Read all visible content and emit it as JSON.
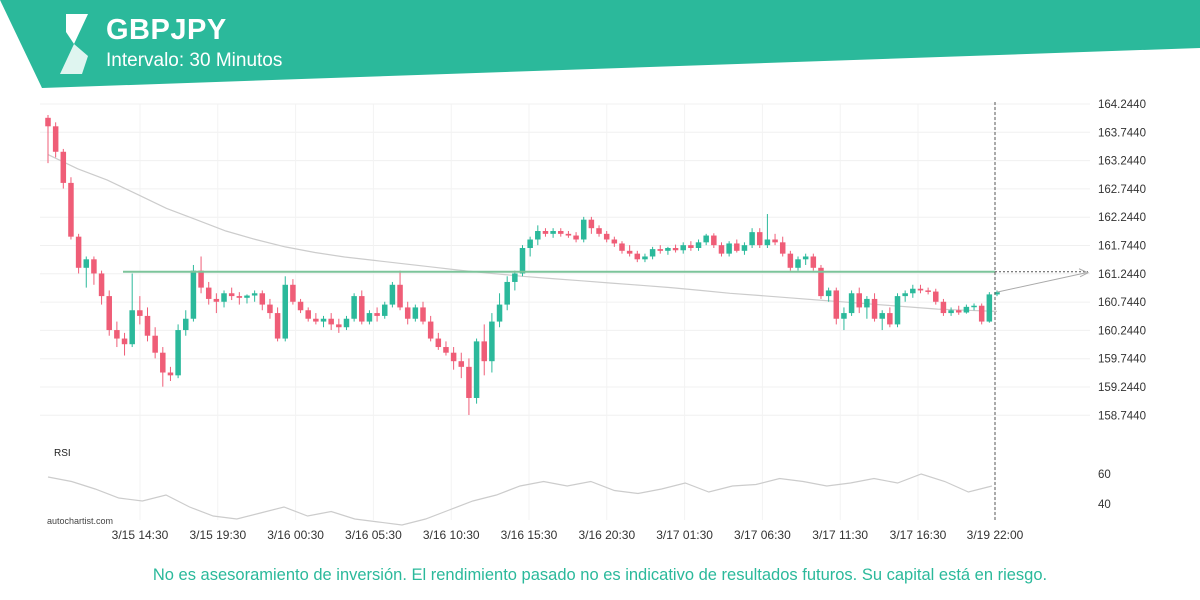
{
  "header": {
    "symbol": "GBPJPY",
    "interval": "Intervalo: 30 Minutos",
    "brand_color": "#2bb99b"
  },
  "watermark": "autochartist.com",
  "disclaimer": "No es asesoramiento de inversión. El rendimiento pasado no es indicativo de resultados futuros. Su capital está en riesgo.",
  "chart_data": [
    {
      "type": "candlestick",
      "title": "GBPJPY",
      "y_ticks": [
        "164.2440",
        "163.7440",
        "163.2440",
        "162.7440",
        "162.2440",
        "161.7440",
        "161.2440",
        "160.7440",
        "160.2440",
        "159.7440",
        "159.2440",
        "158.7440"
      ],
      "ylim": [
        158.5,
        164.3
      ],
      "x_ticks": [
        "3/15 14:30",
        "3/15 19:30",
        "3/16 00:30",
        "3/16 05:30",
        "3/16 10:30",
        "3/16 15:30",
        "3/16 20:30",
        "3/17 01:30",
        "3/17 06:30",
        "3/17 11:30",
        "3/17 16:30",
        "3/19 22:00"
      ],
      "level_line": 161.28,
      "colors": {
        "up": "#2bb99b",
        "down": "#ef5d77",
        "level": "#7cc49a",
        "ma": "#cccccc"
      },
      "ohlc": [
        [
          164.0,
          164.05,
          163.2,
          163.85
        ],
        [
          163.85,
          163.92,
          163.3,
          163.4
        ],
        [
          163.4,
          163.45,
          162.75,
          162.85
        ],
        [
          162.85,
          162.95,
          161.85,
          161.9
        ],
        [
          161.9,
          161.95,
          161.25,
          161.35
        ],
        [
          161.35,
          161.55,
          161.0,
          161.5
        ],
        [
          161.5,
          161.55,
          161.05,
          161.25
        ],
        [
          161.25,
          161.3,
          160.7,
          160.85
        ],
        [
          160.85,
          160.95,
          160.15,
          160.25
        ],
        [
          160.25,
          160.4,
          159.95,
          160.1
        ],
        [
          160.1,
          160.2,
          159.8,
          160.0
        ],
        [
          160.0,
          161.25,
          159.95,
          160.6
        ],
        [
          160.6,
          160.85,
          160.35,
          160.5
        ],
        [
          160.5,
          160.65,
          160.05,
          160.15
        ],
        [
          160.15,
          160.3,
          159.75,
          159.85
        ],
        [
          159.85,
          159.95,
          159.25,
          159.5
        ],
        [
          159.5,
          159.6,
          159.35,
          159.45
        ],
        [
          159.45,
          160.35,
          159.4,
          160.25
        ],
        [
          160.25,
          160.6,
          160.15,
          160.45
        ],
        [
          160.45,
          161.4,
          160.4,
          161.3
        ],
        [
          161.3,
          161.55,
          160.9,
          161.0
        ],
        [
          161.0,
          161.1,
          160.7,
          160.8
        ],
        [
          160.8,
          160.9,
          160.55,
          160.75
        ],
        [
          160.75,
          160.95,
          160.65,
          160.9
        ],
        [
          160.9,
          161.0,
          160.78,
          160.85
        ],
        [
          160.85,
          160.92,
          160.7,
          160.82
        ],
        [
          160.82,
          160.88,
          160.72,
          160.86
        ],
        [
          160.86,
          160.95,
          160.75,
          160.9
        ],
        [
          160.9,
          160.95,
          160.6,
          160.7
        ],
        [
          160.7,
          160.8,
          160.45,
          160.55
        ],
        [
          160.55,
          160.65,
          160.05,
          160.1
        ],
        [
          160.1,
          161.2,
          160.05,
          161.05
        ],
        [
          161.05,
          161.15,
          160.7,
          160.75
        ],
        [
          160.75,
          160.8,
          160.55,
          160.6
        ],
        [
          160.6,
          160.65,
          160.4,
          160.45
        ],
        [
          160.45,
          160.55,
          160.35,
          160.4
        ],
        [
          160.4,
          160.5,
          160.3,
          160.45
        ],
        [
          160.45,
          160.55,
          160.25,
          160.35
        ],
        [
          160.35,
          160.45,
          160.2,
          160.3
        ],
        [
          160.3,
          160.5,
          160.25,
          160.45
        ],
        [
          160.45,
          160.9,
          160.4,
          160.85
        ],
        [
          160.85,
          160.95,
          160.35,
          160.4
        ],
        [
          160.4,
          160.6,
          160.35,
          160.55
        ],
        [
          160.55,
          160.65,
          160.4,
          160.5
        ],
        [
          160.5,
          160.75,
          160.45,
          160.7
        ],
        [
          160.7,
          161.1,
          160.65,
          161.05
        ],
        [
          161.05,
          161.3,
          160.6,
          160.65
        ],
        [
          160.65,
          160.75,
          160.35,
          160.45
        ],
        [
          160.45,
          160.7,
          160.4,
          160.65
        ],
        [
          160.65,
          160.75,
          160.35,
          160.4
        ],
        [
          160.4,
          160.5,
          160.05,
          160.1
        ],
        [
          160.1,
          160.2,
          159.9,
          159.95
        ],
        [
          159.95,
          160.05,
          159.8,
          159.85
        ],
        [
          159.85,
          159.95,
          159.55,
          159.7
        ],
        [
          159.7,
          159.85,
          159.4,
          159.6
        ],
        [
          159.6,
          159.75,
          158.75,
          159.05
        ],
        [
          159.05,
          160.1,
          158.95,
          160.05
        ],
        [
          160.05,
          160.35,
          159.45,
          159.7
        ],
        [
          159.7,
          160.55,
          159.5,
          160.4
        ],
        [
          160.4,
          160.9,
          160.3,
          160.7
        ],
        [
          160.7,
          161.2,
          160.6,
          161.1
        ],
        [
          161.1,
          161.3,
          160.95,
          161.25
        ],
        [
          161.25,
          161.75,
          161.2,
          161.7
        ],
        [
          161.7,
          161.9,
          161.55,
          161.85
        ],
        [
          161.85,
          162.1,
          161.75,
          162.0
        ],
        [
          162.0,
          162.05,
          161.9,
          161.95
        ],
        [
          161.95,
          162.05,
          161.88,
          162.0
        ],
        [
          162.0,
          162.05,
          161.9,
          161.95
        ],
        [
          161.95,
          162.0,
          161.88,
          161.92
        ],
        [
          161.92,
          161.98,
          161.8,
          161.85
        ],
        [
          161.85,
          162.25,
          161.8,
          162.2
        ],
        [
          162.2,
          162.25,
          161.95,
          162.05
        ],
        [
          162.05,
          162.1,
          161.9,
          161.95
        ],
        [
          161.95,
          162.0,
          161.8,
          161.85
        ],
        [
          161.85,
          161.9,
          161.72,
          161.78
        ],
        [
          161.78,
          161.82,
          161.6,
          161.65
        ],
        [
          161.65,
          161.75,
          161.55,
          161.6
        ],
        [
          161.6,
          161.65,
          161.45,
          161.5
        ],
        [
          161.5,
          161.6,
          161.45,
          161.55
        ],
        [
          161.55,
          161.72,
          161.5,
          161.68
        ],
        [
          161.68,
          161.75,
          161.6,
          161.65
        ],
        [
          161.65,
          161.72,
          161.58,
          161.7
        ],
        [
          161.7,
          161.76,
          161.62,
          161.66
        ],
        [
          161.66,
          161.8,
          161.6,
          161.75
        ],
        [
          161.75,
          161.82,
          161.65,
          161.7
        ],
        [
          161.7,
          161.85,
          161.65,
          161.8
        ],
        [
          161.8,
          161.95,
          161.75,
          161.92
        ],
        [
          161.92,
          161.96,
          161.7,
          161.75
        ],
        [
          161.75,
          161.8,
          161.55,
          161.6
        ],
        [
          161.6,
          161.82,
          161.55,
          161.78
        ],
        [
          161.78,
          161.85,
          161.62,
          161.65
        ],
        [
          161.65,
          161.8,
          161.58,
          161.75
        ],
        [
          161.75,
          162.05,
          161.7,
          161.98
        ],
        [
          161.98,
          162.05,
          161.7,
          161.75
        ],
        [
          161.75,
          162.3,
          161.7,
          161.85
        ],
        [
          161.85,
          161.95,
          161.75,
          161.8
        ],
        [
          161.8,
          161.9,
          161.55,
          161.6
        ],
        [
          161.6,
          161.65,
          161.3,
          161.35
        ],
        [
          161.35,
          161.55,
          161.3,
          161.5
        ],
        [
          161.5,
          161.6,
          161.4,
          161.55
        ],
        [
          161.55,
          161.6,
          161.3,
          161.35
        ],
        [
          161.35,
          161.4,
          160.8,
          160.85
        ],
        [
          160.85,
          161.0,
          160.75,
          160.95
        ],
        [
          160.95,
          161.0,
          160.35,
          160.45
        ],
        [
          160.45,
          160.65,
          160.25,
          160.55
        ],
        [
          160.55,
          160.95,
          160.5,
          160.9
        ],
        [
          160.9,
          161.0,
          160.55,
          160.65
        ],
        [
          160.65,
          160.85,
          160.45,
          160.8
        ],
        [
          160.8,
          160.9,
          160.4,
          160.45
        ],
        [
          160.45,
          160.6,
          160.25,
          160.55
        ],
        [
          160.55,
          160.65,
          160.3,
          160.35
        ],
        [
          160.35,
          160.9,
          160.3,
          160.85
        ],
        [
          160.85,
          160.95,
          160.75,
          160.9
        ],
        [
          160.9,
          161.05,
          160.82,
          160.98
        ],
        [
          160.98,
          161.05,
          160.9,
          160.95
        ],
        [
          160.95,
          161.0,
          160.88,
          160.93
        ],
        [
          160.93,
          160.98,
          160.7,
          160.75
        ],
        [
          160.75,
          160.8,
          160.5,
          160.55
        ],
        [
          160.55,
          160.65,
          160.5,
          160.6
        ],
        [
          160.6,
          160.68,
          160.52,
          160.56
        ],
        [
          160.56,
          160.7,
          160.54,
          160.66
        ],
        [
          160.66,
          160.72,
          160.6,
          160.68
        ],
        [
          160.68,
          160.72,
          160.35,
          160.4
        ],
        [
          160.4,
          160.92,
          160.38,
          160.88
        ],
        [
          160.88,
          160.95,
          160.85,
          160.92
        ]
      ],
      "ma": [
        163.35,
        163.1,
        162.9,
        162.65,
        162.4,
        162.2,
        162.0,
        161.85,
        161.72,
        161.62,
        161.54,
        161.48,
        161.42,
        161.36,
        161.3,
        161.25,
        161.2,
        161.16,
        161.12,
        161.08,
        161.04,
        161.0,
        160.95,
        160.9,
        160.86,
        160.82,
        160.78,
        160.74,
        160.7,
        160.66,
        160.62,
        160.6,
        160.58
      ],
      "rsi": [
        58,
        55,
        50,
        44,
        42,
        46,
        38,
        32,
        30,
        34,
        38,
        32,
        35,
        30,
        28,
        26,
        30,
        36,
        42,
        46,
        52,
        55,
        52,
        55,
        49,
        47,
        50,
        54,
        48,
        52,
        53,
        57,
        55,
        52,
        54,
        57,
        54,
        60,
        55,
        48,
        52
      ],
      "rsi_ticks": [
        "60",
        "40"
      ],
      "rsi_title": "RSI"
    }
  ]
}
